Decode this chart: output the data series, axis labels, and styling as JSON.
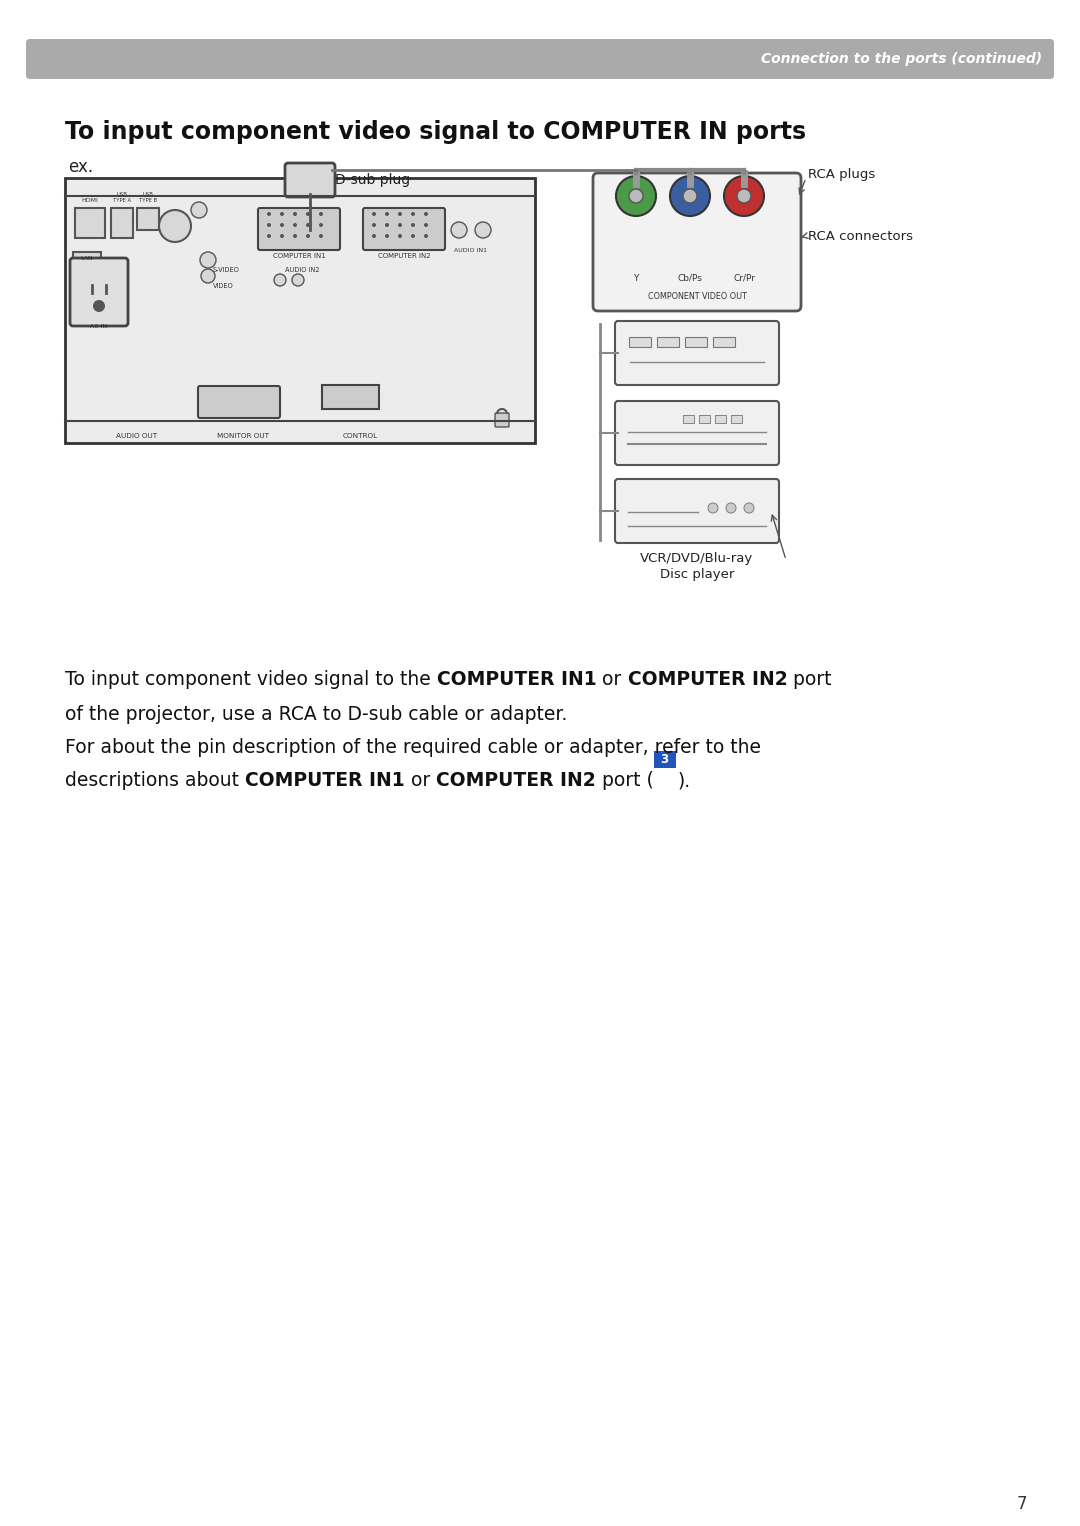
{
  "page_bg": "#ffffff",
  "header_bg": "#aaaaaa",
  "header_text": "Connection to the ports (continued)",
  "header_text_color": "#ffffff",
  "title": "To input component video signal to COMPUTER IN ports",
  "subtitle": "ex.",
  "page_number": "7",
  "label_dsub": "D-sub plug",
  "label_rca_plugs": "RCA plugs",
  "label_rca_conn": "RCA connectors",
  "label_vcr": "VCR/DVD/Blu-ray",
  "label_disc": "Disc player",
  "rca_green": "#4a9a4a",
  "rca_blue": "#3a5fa0",
  "rca_red": "#c03030"
}
